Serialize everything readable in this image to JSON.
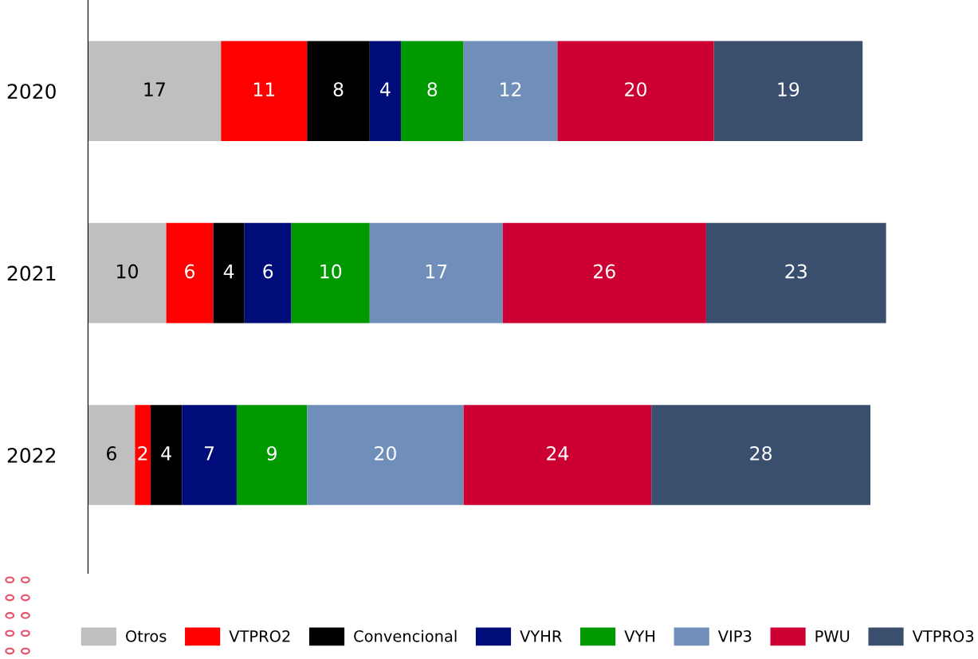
{
  "chart_data": {
    "type": "bar",
    "orientation": "horizontal",
    "stacked": true,
    "data_labels": true,
    "legend": "bottom",
    "grid": false,
    "categories": [
      "2020",
      "2021",
      "2022"
    ],
    "series": [
      {
        "name": "Otros",
        "color": "#bfbfbf",
        "values": [
          17,
          10,
          6
        ]
      },
      {
        "name": "VTPRO2",
        "color": "#ff0000",
        "values": [
          11,
          6,
          2
        ]
      },
      {
        "name": "Convencional",
        "color": "#000000",
        "values": [
          8,
          4,
          4
        ]
      },
      {
        "name": "VYHR",
        "color": "#000c7a",
        "values": [
          4,
          6,
          7
        ]
      },
      {
        "name": "VYH",
        "color": "#009900",
        "values": [
          8,
          10,
          9
        ]
      },
      {
        "name": "VIP3",
        "color": "#6f8fba",
        "values": [
          12,
          17,
          20
        ]
      },
      {
        "name": "PWU",
        "color": "#cc0033",
        "values": [
          20,
          26,
          24
        ]
      },
      {
        "name": "VTPRO3",
        "color": "#3a4e6e",
        "values": [
          19,
          23,
          28
        ]
      }
    ]
  }
}
